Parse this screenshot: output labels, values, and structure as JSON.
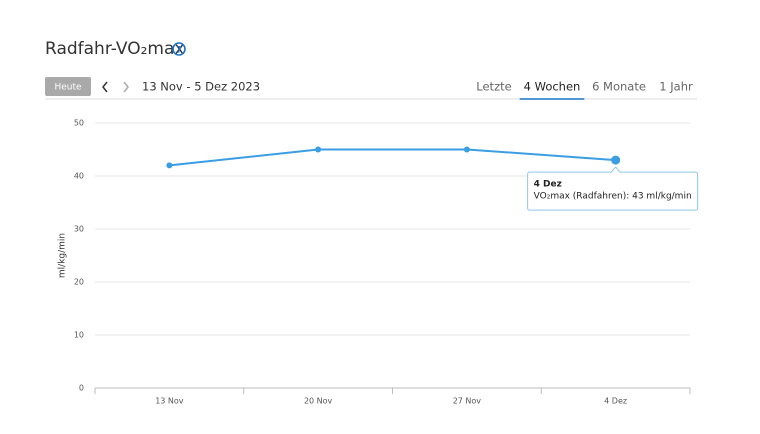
{
  "header": {
    "title": "Radfahr-VO₂max"
  },
  "controls": {
    "today": "Heute",
    "range": "13 Nov - 5 Dez 2023",
    "tabs": [
      "Letzte",
      "4 Wochen",
      "6 Monate",
      "1 Jahr"
    ],
    "active_tab": 1
  },
  "chart_data": {
    "type": "line",
    "ylabel": "ml/kg/min",
    "categories": [
      "13 Nov",
      "20 Nov",
      "27 Nov",
      "4 Dez"
    ],
    "values": [
      42,
      45,
      45,
      43
    ],
    "color": "#3b9ee3",
    "ylim": [
      0,
      50
    ],
    "yticks": [
      0,
      10,
      20,
      30,
      40,
      50
    ],
    "grid": true,
    "tooltip": {
      "title": "4 Dez",
      "text": "VO₂max (Radfahren): 43 ml/kg/min"
    }
  }
}
